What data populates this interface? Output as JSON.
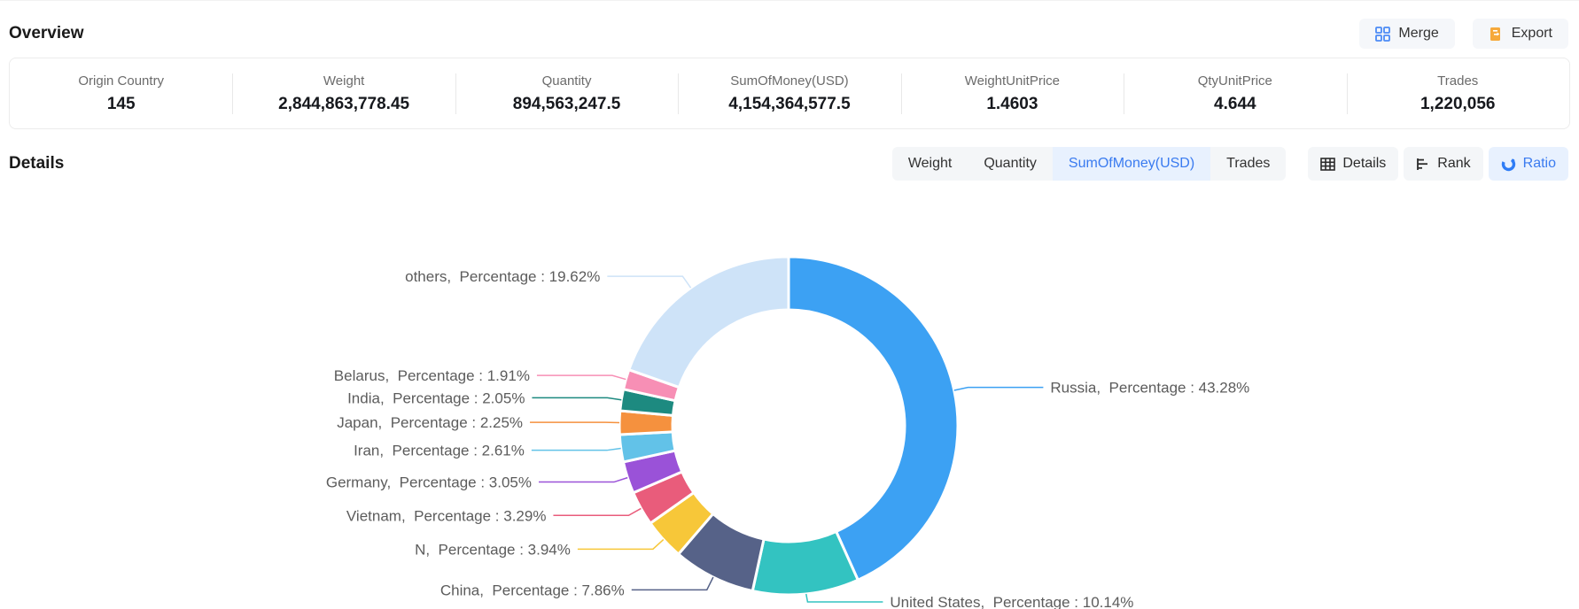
{
  "header": {
    "title": "Overview",
    "merge_label": "Merge",
    "export_label": "Export"
  },
  "overview_stats": [
    {
      "label": "Origin Country",
      "value": "145"
    },
    {
      "label": "Weight",
      "value": "2,844,863,778.45"
    },
    {
      "label": "Quantity",
      "value": "894,563,247.5"
    },
    {
      "label": "SumOfMoney(USD)",
      "value": "4,154,364,577.5"
    },
    {
      "label": "WeightUnitPrice",
      "value": "1.4603"
    },
    {
      "label": "QtyUnitPrice",
      "value": "4.644"
    },
    {
      "label": "Trades",
      "value": "1,220,056"
    }
  ],
  "details": {
    "title": "Details",
    "metric_tabs": [
      {
        "label": "Weight",
        "active": false
      },
      {
        "label": "Quantity",
        "active": false
      },
      {
        "label": "SumOfMoney(USD)",
        "active": true
      },
      {
        "label": "Trades",
        "active": false
      }
    ],
    "view_tabs": [
      {
        "label": "Details",
        "icon": "table-icon",
        "active": false
      },
      {
        "label": "Rank",
        "icon": "rank-icon",
        "active": false
      },
      {
        "label": "Ratio",
        "icon": "donut-icon",
        "active": true
      }
    ]
  },
  "colors": {
    "accent_blue": "#3A7BF0",
    "accent_blue_bg": "#E8F1FE",
    "tab_gray_bg": "#F4F6F8",
    "merge_icon_blue": "#4C8BF5",
    "export_icon_orange": "#F6A93B",
    "label_text": "#5C5C5C"
  },
  "chart_data": {
    "type": "pie",
    "shape": "donut",
    "selected_metric": "SumOfMoney(USD)",
    "selected_view": "Ratio",
    "label_template": "{name},  Percentage : {pct}%",
    "slices": [
      {
        "name": "Russia",
        "pct": 43.28,
        "color": "#3CA1F3"
      },
      {
        "name": "United States",
        "pct": 10.14,
        "color": "#33C3C1"
      },
      {
        "name": "China",
        "pct": 7.86,
        "color": "#566288"
      },
      {
        "name": "N",
        "pct": 3.94,
        "color": "#F7C739"
      },
      {
        "name": "Vietnam",
        "pct": 3.29,
        "color": "#E95C7B"
      },
      {
        "name": "Germany",
        "pct": 3.05,
        "color": "#9A52D8"
      },
      {
        "name": "Iran",
        "pct": 2.61,
        "color": "#62C2E8"
      },
      {
        "name": "Japan",
        "pct": 2.25,
        "color": "#F5913E"
      },
      {
        "name": "India",
        "pct": 2.05,
        "color": "#1D8A80"
      },
      {
        "name": "Belarus",
        "pct": 1.91,
        "color": "#F78FB5"
      },
      {
        "name": "others",
        "pct": 19.62,
        "color": "#CEE3F8"
      }
    ]
  }
}
